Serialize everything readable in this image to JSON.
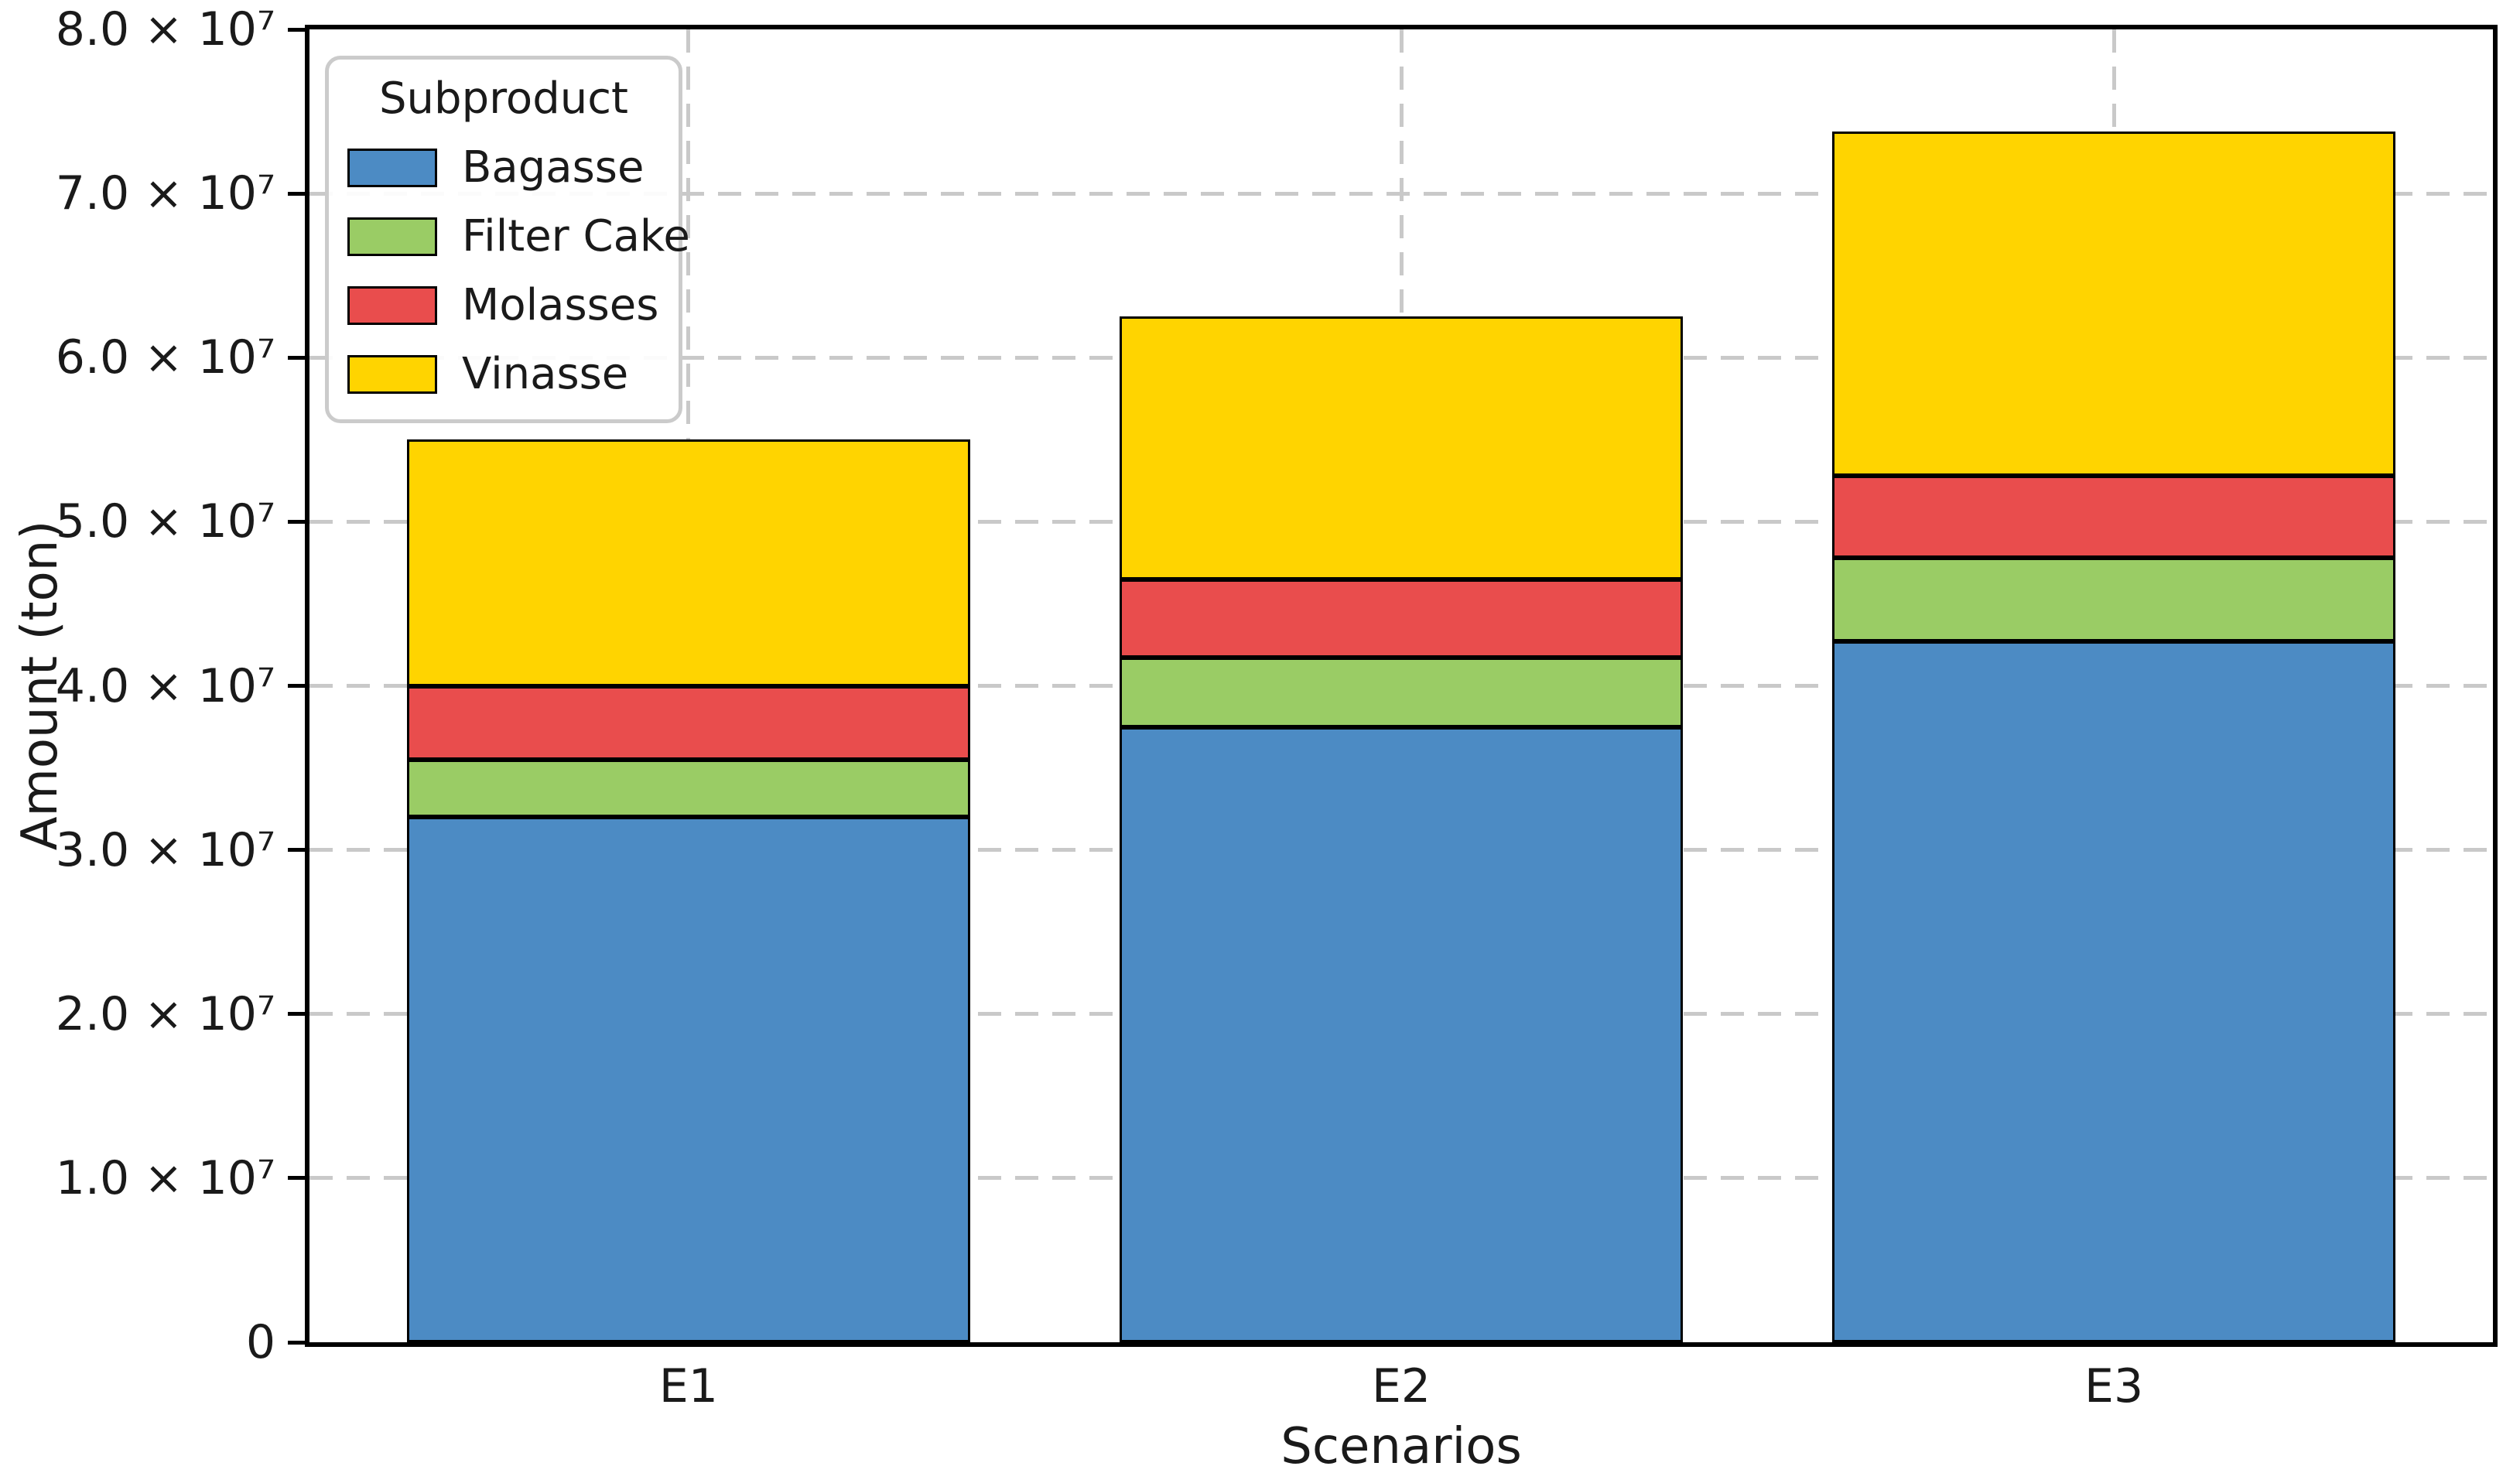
{
  "figure": {
    "background": "#ffffff",
    "text_color": "#1a1a1a",
    "grid_color": "#c9c9c9",
    "spine_color": "#000000"
  },
  "chart_data": {
    "type": "bar",
    "stacked": true,
    "title": "",
    "xlabel": "Scenarios",
    "ylabel": "Amount (ton)",
    "categories": [
      "E1",
      "E2",
      "E3"
    ],
    "series": [
      {
        "name": "Bagasse",
        "color": "#4C8BC4",
        "values": [
          32000000,
          37500000,
          42700000
        ]
      },
      {
        "name": "Filter Cake",
        "color": "#9ACC65",
        "values": [
          3500000,
          4200000,
          5100000
        ]
      },
      {
        "name": "Molasses",
        "color": "#E94D4D",
        "values": [
          4500000,
          4800000,
          5000000
        ]
      },
      {
        "name": "Vinasse",
        "color": "#FFD400",
        "values": [
          15000000,
          16000000,
          21000000
        ]
      }
    ],
    "stack_totals": [
      55000000,
      62500000,
      73800000
    ],
    "ylim": [
      0,
      80000000
    ],
    "ytick_values": [
      0,
      10000000,
      20000000,
      30000000,
      40000000,
      50000000,
      60000000,
      70000000,
      80000000
    ],
    "ytick_labels": [
      "0",
      "1.0 × 10⁷",
      "2.0 × 10⁷",
      "3.0 × 10⁷",
      "4.0 × 10⁷",
      "5.0 × 10⁷",
      "6.0 × 10⁷",
      "7.0 × 10⁷",
      "8.0 × 10⁷"
    ],
    "grid": {
      "style": "dashed",
      "axis": "both"
    },
    "legend": {
      "title": "Subproduct",
      "position": "upper left"
    }
  }
}
